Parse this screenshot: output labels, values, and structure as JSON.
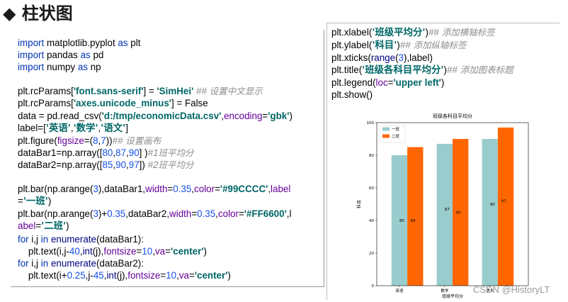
{
  "slide": {
    "title": "◆ 柱状图"
  },
  "code_left": [
    [
      [
        "kw",
        "import"
      ],
      [
        "pl",
        " matplotlib.pyplot "
      ],
      [
        "kw",
        "as"
      ],
      [
        "pl",
        " plt"
      ]
    ],
    [
      [
        "kw",
        "import"
      ],
      [
        "pl",
        " pandas "
      ],
      [
        "kw",
        "as"
      ],
      [
        "pl",
        " pd"
      ]
    ],
    [
      [
        "kw",
        "import"
      ],
      [
        "pl",
        " numpy "
      ],
      [
        "kw",
        "as"
      ],
      [
        "pl",
        " np"
      ]
    ],
    [],
    [
      [
        "pl",
        "plt.rcParams["
      ],
      [
        "st",
        "'font.sans-serif'"
      ],
      [
        "pl",
        "] = "
      ],
      [
        "st",
        "'SimHei'"
      ],
      [
        "pl",
        " "
      ],
      [
        "cm",
        "## "
      ],
      [
        "cmcn",
        "设置中文显示"
      ]
    ],
    [
      [
        "pl",
        "plt.rcParams["
      ],
      [
        "st",
        "'axes.unicode_minus'"
      ],
      [
        "pl",
        "] = False"
      ]
    ],
    [
      [
        "pl",
        "data = pd.read_csv("
      ],
      [
        "st",
        "'d:/tmp/economicData.csv'"
      ],
      [
        "pl",
        ","
      ],
      [
        "param",
        "encoding"
      ],
      [
        "pl",
        "="
      ],
      [
        "st",
        "'gbk'"
      ],
      [
        "pl",
        ")"
      ]
    ],
    [
      [
        "pl",
        "label=["
      ],
      [
        "stcn",
        "'英语'"
      ],
      [
        "pl",
        ","
      ],
      [
        "stcn",
        "'数学'"
      ],
      [
        "pl",
        ","
      ],
      [
        "stcn",
        "'语文'"
      ],
      [
        "pl",
        "]"
      ]
    ],
    [
      [
        "pl",
        "plt.figure("
      ],
      [
        "param",
        "figsize"
      ],
      [
        "pl",
        "=("
      ],
      [
        "num",
        "8"
      ],
      [
        "pl",
        ","
      ],
      [
        "num",
        "7"
      ],
      [
        "pl",
        "))"
      ],
      [
        "cm",
        "## "
      ],
      [
        "cmcn",
        "设置画布"
      ]
    ],
    [
      [
        "pl",
        "dataBar1=np.array(["
      ],
      [
        "num",
        "80"
      ],
      [
        "pl",
        ","
      ],
      [
        "num",
        "87"
      ],
      [
        "pl",
        ","
      ],
      [
        "num",
        "90"
      ],
      [
        "pl",
        "] )"
      ],
      [
        "cm",
        "#1"
      ],
      [
        "cmcn",
        "班平均分"
      ]
    ],
    [
      [
        "pl",
        "dataBar2=np.array(["
      ],
      [
        "num",
        "85"
      ],
      [
        "pl",
        ","
      ],
      [
        "num",
        "90"
      ],
      [
        "pl",
        ","
      ],
      [
        "num",
        "97"
      ],
      [
        "pl",
        "]) "
      ],
      [
        "cm",
        "#2"
      ],
      [
        "cmcn",
        "班平均分"
      ]
    ],
    [],
    [
      [
        "pl",
        "plt.bar(np.arange("
      ],
      [
        "num",
        "3"
      ],
      [
        "pl",
        "),dataBar1,"
      ],
      [
        "param",
        "width"
      ],
      [
        "pl",
        "="
      ],
      [
        "num",
        "0.35"
      ],
      [
        "pl",
        ","
      ],
      [
        "param",
        "color"
      ],
      [
        "pl",
        "="
      ],
      [
        "st",
        "'#99CCCC'"
      ],
      [
        "pl",
        ","
      ],
      [
        "param",
        "label"
      ]
    ],
    [
      [
        "pl",
        "="
      ],
      [
        "stcn",
        "'一班'"
      ],
      [
        "pl",
        ")"
      ]
    ],
    [
      [
        "pl",
        "plt.bar(np.arange("
      ],
      [
        "num",
        "3"
      ],
      [
        "pl",
        ")+"
      ],
      [
        "num",
        "0.35"
      ],
      [
        "pl",
        ",dataBar2,"
      ],
      [
        "param",
        "width"
      ],
      [
        "pl",
        "="
      ],
      [
        "num",
        "0.35"
      ],
      [
        "pl",
        ","
      ],
      [
        "param",
        "color"
      ],
      [
        "pl",
        "="
      ],
      [
        "st",
        "'#FF6600'"
      ],
      [
        "pl",
        ",l"
      ]
    ],
    [
      [
        "param",
        "abel"
      ],
      [
        "pl",
        "="
      ],
      [
        "stcn",
        "'二班'"
      ],
      [
        "pl",
        ")"
      ]
    ],
    [
      [
        "kw",
        "for"
      ],
      [
        "pl",
        " i,j "
      ],
      [
        "kw",
        "in"
      ],
      [
        "pl",
        " "
      ],
      [
        "fn",
        "enumerate"
      ],
      [
        "pl",
        "(dataBar1):"
      ]
    ],
    [
      [
        "pl",
        "    plt.text(i,j-"
      ],
      [
        "num",
        "40"
      ],
      [
        "pl",
        ","
      ],
      [
        "fn",
        "int"
      ],
      [
        "pl",
        "(j),"
      ],
      [
        "param",
        "fontsize"
      ],
      [
        "pl",
        "="
      ],
      [
        "num",
        "10"
      ],
      [
        "pl",
        ","
      ],
      [
        "param",
        "va"
      ],
      [
        "pl",
        "="
      ],
      [
        "st",
        "'center'"
      ],
      [
        "pl",
        ")"
      ]
    ],
    [
      [
        "kw",
        "for"
      ],
      [
        "pl",
        " i,j "
      ],
      [
        "kw",
        "in"
      ],
      [
        "pl",
        " "
      ],
      [
        "fn",
        "enumerate"
      ],
      [
        "pl",
        "(dataBar2):"
      ]
    ],
    [
      [
        "pl",
        "    plt.text(i+"
      ],
      [
        "num",
        "0.25"
      ],
      [
        "pl",
        ",j-"
      ],
      [
        "num",
        "45"
      ],
      [
        "pl",
        ","
      ],
      [
        "fn",
        "int"
      ],
      [
        "pl",
        "(j),"
      ],
      [
        "param",
        "fontsize"
      ],
      [
        "pl",
        "="
      ],
      [
        "num",
        "10"
      ],
      [
        "pl",
        ","
      ],
      [
        "param",
        "va"
      ],
      [
        "pl",
        "="
      ],
      [
        "st",
        "'center'"
      ],
      [
        "pl",
        ")"
      ]
    ]
  ],
  "code_right": [
    [
      [
        "pl",
        "plt.xlabel("
      ],
      [
        "stcn",
        "'班级平均分'"
      ],
      [
        "pl",
        ")"
      ],
      [
        "cm",
        "## "
      ],
      [
        "cmcn",
        "添加横轴标签"
      ]
    ],
    [
      [
        "pl",
        "plt.ylabel("
      ],
      [
        "stcn",
        "'科目'"
      ],
      [
        "pl",
        ")"
      ],
      [
        "cm",
        "## "
      ],
      [
        "cmcn",
        "添加纵轴标签"
      ]
    ],
    [
      [
        "pl",
        "plt.xticks("
      ],
      [
        "fn",
        "range"
      ],
      [
        "pl",
        "("
      ],
      [
        "num",
        "3"
      ],
      [
        "pl",
        "),label)"
      ]
    ],
    [
      [
        "pl",
        "plt.title("
      ],
      [
        "stcn",
        "'班级各科目平均分'"
      ],
      [
        "pl",
        ")"
      ],
      [
        "cm",
        "## "
      ],
      [
        "cmcn",
        "添加图表标题"
      ]
    ],
    [
      [
        "pl",
        "plt.legend("
      ],
      [
        "param",
        "loc"
      ],
      [
        "pl",
        "="
      ],
      [
        "st",
        "'upper left'"
      ],
      [
        "pl",
        ")"
      ]
    ],
    [
      [
        "pl",
        "plt.show()"
      ]
    ]
  ],
  "chart_data": {
    "type": "bar",
    "title": "班级各科目平均分",
    "xlabel": "班级平均分",
    "ylabel": "科目",
    "categories": [
      "英语",
      "数学",
      "语文"
    ],
    "series": [
      {
        "name": "一班",
        "values": [
          80,
          87,
          90
        ],
        "color": "#99CCCC"
      },
      {
        "name": "二班",
        "values": [
          85,
          90,
          97
        ],
        "color": "#FF6600"
      }
    ],
    "bar_labels": [
      [
        "80",
        "87",
        "90"
      ],
      [
        "85",
        "90",
        "97"
      ]
    ],
    "yticks": [
      0,
      20,
      40,
      60,
      80,
      100
    ],
    "ylim": [
      0,
      100
    ],
    "legend": "upper-left",
    "grid": false
  },
  "watermark": "CSDN @HistoryLT"
}
